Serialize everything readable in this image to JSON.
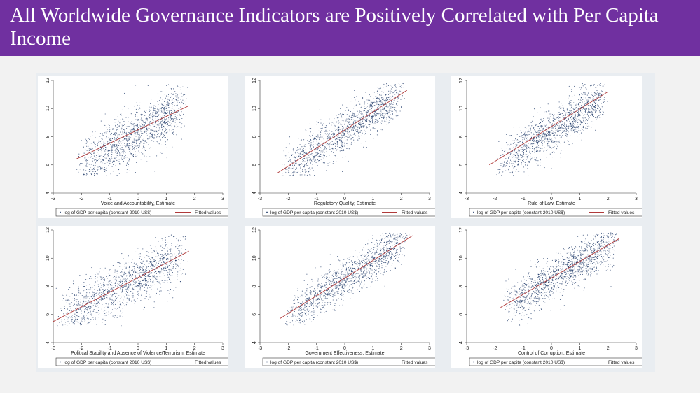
{
  "slide": {
    "title": "All Worldwide Governance Indicators are Positively Correlated with Per Capita Income",
    "title_color": "#ffffff",
    "bar_color": "#7030a0"
  },
  "colors": {
    "points": "#1f3a68",
    "fit_line": "#b03a3a",
    "plot_bg": "#ffffff",
    "figure_bg": "#e9edf1"
  },
  "chart_data": [
    {
      "type": "scatter",
      "xlabel": "Voice and Accountability, Estimate",
      "ylabel": "",
      "xlim": [
        -3,
        3
      ],
      "ylim": [
        4,
        12
      ],
      "x_ticks": [
        -3,
        -2,
        -1,
        0,
        1,
        2,
        3
      ],
      "y_ticks": [
        4,
        6,
        8,
        10,
        12
      ],
      "series": [
        {
          "name": "log of GDP per capita (constant 2010 US$)",
          "style": "points",
          "x_range": [
            -2.2,
            1.8
          ],
          "center_slope": 1.1,
          "center_intercept": 8.3,
          "spread": 1.1
        },
        {
          "name": "Fitted values",
          "style": "line",
          "x": [
            -2.2,
            1.8
          ],
          "y": [
            6.4,
            10.2
          ]
        }
      ],
      "legend": [
        "log of GDP per capita (constant 2010 US$)",
        "Fitted values"
      ],
      "legend_position": "bottom",
      "grid": false
    },
    {
      "type": "scatter",
      "xlabel": "Regulatory Quality, Estimate",
      "ylabel": "",
      "xlim": [
        -3,
        3
      ],
      "ylim": [
        4,
        12
      ],
      "x_ticks": [
        -3,
        -2,
        -1,
        0,
        1,
        2,
        3
      ],
      "y_ticks": [
        4,
        6,
        8,
        10,
        12
      ],
      "series": [
        {
          "name": "log of GDP per capita (constant 2010 US$)",
          "style": "points",
          "x_range": [
            -2.4,
            2.2
          ],
          "center_slope": 1.3,
          "center_intercept": 8.4,
          "spread": 0.9
        },
        {
          "name": "Fitted values",
          "style": "line",
          "x": [
            -2.4,
            2.2
          ],
          "y": [
            5.4,
            11.3
          ]
        }
      ],
      "legend": [
        "log of GDP per capita (constant 2010 US$)",
        "Fitted values"
      ],
      "legend_position": "bottom",
      "grid": false
    },
    {
      "type": "scatter",
      "xlabel": "Rule of Law, Estimate",
      "ylabel": "",
      "xlim": [
        -3,
        3
      ],
      "ylim": [
        4,
        12
      ],
      "x_ticks": [
        -3,
        -2,
        -1,
        0,
        1,
        2,
        3
      ],
      "y_ticks": [
        4,
        6,
        8,
        10,
        12
      ],
      "series": [
        {
          "name": "log of GDP per capita (constant 2010 US$)",
          "style": "points",
          "x_range": [
            -2.0,
            2.0
          ],
          "center_slope": 1.3,
          "center_intercept": 8.4,
          "spread": 0.9
        },
        {
          "name": "Fitted values",
          "style": "line",
          "x": [
            -2.2,
            2.0
          ],
          "y": [
            6.0,
            11.2
          ]
        }
      ],
      "legend": [
        "log of GDP per capita (constant 2010 US$)",
        "Fitted values"
      ],
      "legend_position": "bottom",
      "grid": false
    },
    {
      "type": "scatter",
      "xlabel": "Political Stability and Absence of Violence/Terrorism, Estimate",
      "ylabel": "",
      "xlim": [
        -3,
        3
      ],
      "ylim": [
        4,
        12
      ],
      "x_ticks": [
        -3,
        -2,
        -1,
        0,
        1,
        2,
        3
      ],
      "y_ticks": [
        4,
        6,
        8,
        10,
        12
      ],
      "series": [
        {
          "name": "log of GDP per capita (constant 2010 US$)",
          "style": "points",
          "x_range": [
            -3.0,
            1.8
          ],
          "center_slope": 1.0,
          "center_intercept": 8.6,
          "spread": 1.1
        },
        {
          "name": "Fitted values",
          "style": "line",
          "x": [
            -3.0,
            1.8
          ],
          "y": [
            5.5,
            10.5
          ]
        }
      ],
      "legend": [
        "log of GDP per capita (constant 2010 US$)",
        "Fitted values"
      ],
      "legend_position": "bottom",
      "grid": false
    },
    {
      "type": "scatter",
      "xlabel": "Government Effectiveness, Estimate",
      "ylabel": "",
      "xlim": [
        -3,
        3
      ],
      "ylim": [
        4,
        12
      ],
      "x_ticks": [
        -3,
        -2,
        -1,
        0,
        1,
        2,
        3
      ],
      "y_ticks": [
        4,
        6,
        8,
        10,
        12
      ],
      "series": [
        {
          "name": "log of GDP per capita (constant 2010 US$)",
          "style": "points",
          "x_range": [
            -2.2,
            2.3
          ],
          "center_slope": 1.3,
          "center_intercept": 8.5,
          "spread": 0.85
        },
        {
          "name": "Fitted values",
          "style": "line",
          "x": [
            -2.3,
            2.4
          ],
          "y": [
            5.7,
            11.6
          ]
        }
      ],
      "legend": [
        "log of GDP per capita (constant 2010 US$)",
        "Fitted values"
      ],
      "legend_position": "bottom",
      "grid": false
    },
    {
      "type": "scatter",
      "xlabel": "Control of Corruption, Estimate",
      "ylabel": "",
      "xlim": [
        -3,
        3
      ],
      "ylim": [
        4,
        12
      ],
      "x_ticks": [
        -3,
        -2,
        -1,
        0,
        1,
        2,
        3
      ],
      "y_ticks": [
        4,
        6,
        8,
        10,
        12
      ],
      "series": [
        {
          "name": "log of GDP per capita (constant 2010 US$)",
          "style": "points",
          "x_range": [
            -1.8,
            2.4
          ],
          "center_slope": 1.2,
          "center_intercept": 8.5,
          "spread": 0.9
        },
        {
          "name": "Fitted values",
          "style": "line",
          "x": [
            -1.8,
            2.4
          ],
          "y": [
            6.5,
            11.4
          ]
        }
      ],
      "legend": [
        "log of GDP per capita (constant 2010 US$)",
        "Fitted values"
      ],
      "legend_position": "bottom",
      "grid": false
    }
  ]
}
